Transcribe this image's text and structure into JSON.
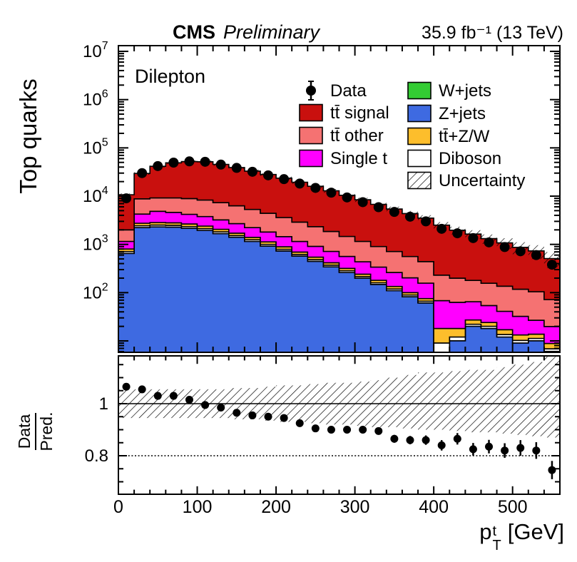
{
  "header": {
    "experiment": "CMS",
    "status": "Preliminary",
    "lumi": "35.9 fb⁻¹ (13 TeV)"
  },
  "panel_label": "Dilepton",
  "chart_data": {
    "type": "stacked-histogram-with-ratio",
    "title": "CMS Preliminary Dilepton top quark pT",
    "ylabel": "Top quarks",
    "xlabel": {
      "base": "p",
      "sup": "t",
      "sub": "T",
      "unit": "[GeV]"
    },
    "ratio_label": {
      "numerator": "Data",
      "denominator": "Pred."
    },
    "x_range": [
      0,
      560
    ],
    "x_ticks": [
      0,
      100,
      200,
      300,
      400,
      500
    ],
    "x_minor_step": 20,
    "y_scale": "log",
    "y_range": [
      5.8,
      13000000
    ],
    "y_tick_base": "10",
    "y_log_exponents": [
      2,
      3,
      4,
      5,
      6,
      7
    ],
    "ratio_range": [
      0.652,
      1.186
    ],
    "ratio_ticks": [
      "0.8",
      "1"
    ],
    "ratio_lines": {
      "solid": 1.0,
      "dotted": 0.8
    },
    "legend": {
      "col1": [
        "Data",
        "tt̄ signal",
        "tt̄ other",
        "Single t"
      ],
      "col2": [
        "W+jets",
        "Z+jets",
        "tt̄+Z/W",
        "Diboson",
        "Uncertainty"
      ]
    },
    "bin_edges": [
      0,
      20,
      40,
      60,
      80,
      100,
      120,
      140,
      160,
      180,
      200,
      220,
      240,
      260,
      280,
      300,
      320,
      340,
      360,
      380,
      400,
      420,
      440,
      460,
      480,
      500,
      520,
      540,
      560
    ],
    "series": [
      {
        "name": "W+jets",
        "color": "#33cc33",
        "values": [
          0.5,
          2,
          2,
          2,
          1.8,
          1.6,
          1.4,
          1.2,
          1,
          0.8,
          0.7,
          0.6,
          0.5,
          0.4,
          0.3,
          0.3,
          0.2,
          0.2,
          0.15,
          0.1,
          0.05,
          0.05,
          0.05,
          0.05,
          0.05,
          0.05,
          0.05,
          0.05
        ]
      },
      {
        "name": "Z+jets",
        "color": "#3e6ae1",
        "values": [
          650,
          2230,
          2300,
          2280,
          2150,
          1950,
          1670,
          1400,
          1150,
          920,
          730,
          570,
          445,
          342,
          262,
          198,
          148,
          110,
          82,
          61,
          0.3,
          10,
          20,
          18,
          12,
          9,
          10,
          6
        ]
      },
      {
        "name": "Diboson",
        "color": "#ffffff",
        "values": [
          60,
          200,
          210,
          200,
          190,
          170,
          150,
          120,
          95,
          78,
          60,
          47,
          37,
          28,
          21,
          16,
          12,
          9,
          7,
          5.5,
          8.7,
          2,
          2,
          2,
          1.5,
          1.2,
          1.2,
          0.8
        ]
      },
      {
        "name": "tt̄+Z/W",
        "color": "#fdbe2c",
        "values": [
          90,
          310,
          330,
          320,
          300,
          270,
          230,
          190,
          155,
          125,
          98,
          77,
          60,
          46,
          35,
          27,
          20,
          15,
          11,
          8.5,
          9,
          6,
          5,
          4,
          3.5,
          3,
          2.5,
          2
        ]
      },
      {
        "name": "Single t",
        "color": "#ff00ff",
        "values": [
          350,
          1500,
          2000,
          1800,
          1550,
          1380,
          1170,
          980,
          820,
          680,
          560,
          455,
          370,
          300,
          243,
          196,
          158,
          127,
          102,
          82,
          50,
          45,
          38,
          30,
          24,
          19,
          13,
          11
        ]
      },
      {
        "name": "tt̄ other",
        "color": "#f57272",
        "values": [
          850,
          4558,
          4358,
          4598,
          4708,
          4528,
          4079,
          3609,
          3079,
          2596,
          2151,
          1750,
          1417,
          1134,
          899,
          713,
          562,
          449,
          358,
          283,
          162,
          136,
          114,
          102,
          95,
          85,
          78,
          52
        ]
      },
      {
        "name": "tt̄ signal",
        "color": "#c9100e",
        "values": [
          8700,
          20700,
          32300,
          39800,
          43100,
          43200,
          38200,
          32900,
          27700,
          23600,
          20000,
          16500,
          13670,
          11050,
          8940,
          7250,
          5850,
          4690,
          3800,
          3070,
          2270,
          1766,
          1457,
          1161,
          937,
          750,
          627,
          438
        ]
      }
    ],
    "data_points": {
      "label": "Data",
      "values": [
        9000,
        30000,
        42000,
        49500,
        52500,
        51500,
        45000,
        38500,
        32000,
        27000,
        22500,
        18200,
        14800,
        11800,
        9400,
        7500,
        5900,
        4700,
        3750,
        3000,
        2100,
        1700,
        1350,
        1100,
        880,
        720,
        600,
        380
      ]
    },
    "ratio_points": {
      "values": [
        1.065,
        1.055,
        1.03,
        1.03,
        1.015,
        0.995,
        0.985,
        0.965,
        0.955,
        0.95,
        0.945,
        0.925,
        0.905,
        0.9,
        0.9,
        0.9,
        0.895,
        0.865,
        0.86,
        0.86,
        0.84,
        0.865,
        0.825,
        0.835,
        0.82,
        0.83,
        0.82,
        0.745
      ],
      "errors": [
        0.008,
        0.006,
        0.005,
        0.005,
        0.005,
        0.005,
        0.005,
        0.006,
        0.006,
        0.007,
        0.007,
        0.008,
        0.009,
        0.01,
        0.011,
        0.012,
        0.013,
        0.015,
        0.016,
        0.018,
        0.02,
        0.022,
        0.024,
        0.026,
        0.028,
        0.03,
        0.032,
        0.035
      ]
    },
    "uncertainty": {
      "label": "Uncertainty",
      "rel": [
        0.06,
        0.06,
        0.06,
        0.06,
        0.06,
        0.06,
        0.065,
        0.065,
        0.07,
        0.07,
        0.075,
        0.08,
        0.085,
        0.09,
        0.095,
        0.1,
        0.11,
        0.12,
        0.13,
        0.145,
        0.16,
        0.18,
        0.2,
        0.22,
        0.25,
        0.28,
        0.32,
        0.36
      ],
      "ratio_lo": [
        0.945,
        0.945,
        0.945,
        0.945,
        0.945,
        0.945,
        0.945,
        0.94,
        0.94,
        0.935,
        0.93,
        0.93,
        0.925,
        0.92,
        0.92,
        0.915,
        0.91,
        0.91,
        0.905,
        0.9,
        0.9,
        0.895,
        0.89,
        0.89,
        0.885,
        0.88,
        0.875,
        0.87
      ],
      "ratio_hi": [
        1.055,
        1.055,
        1.055,
        1.055,
        1.055,
        1.055,
        1.055,
        1.06,
        1.06,
        1.065,
        1.07,
        1.07,
        1.075,
        1.08,
        1.08,
        1.085,
        1.09,
        1.1,
        1.11,
        1.12,
        1.12,
        1.125,
        1.13,
        1.13,
        1.14,
        1.15,
        1.16,
        1.18
      ]
    }
  }
}
